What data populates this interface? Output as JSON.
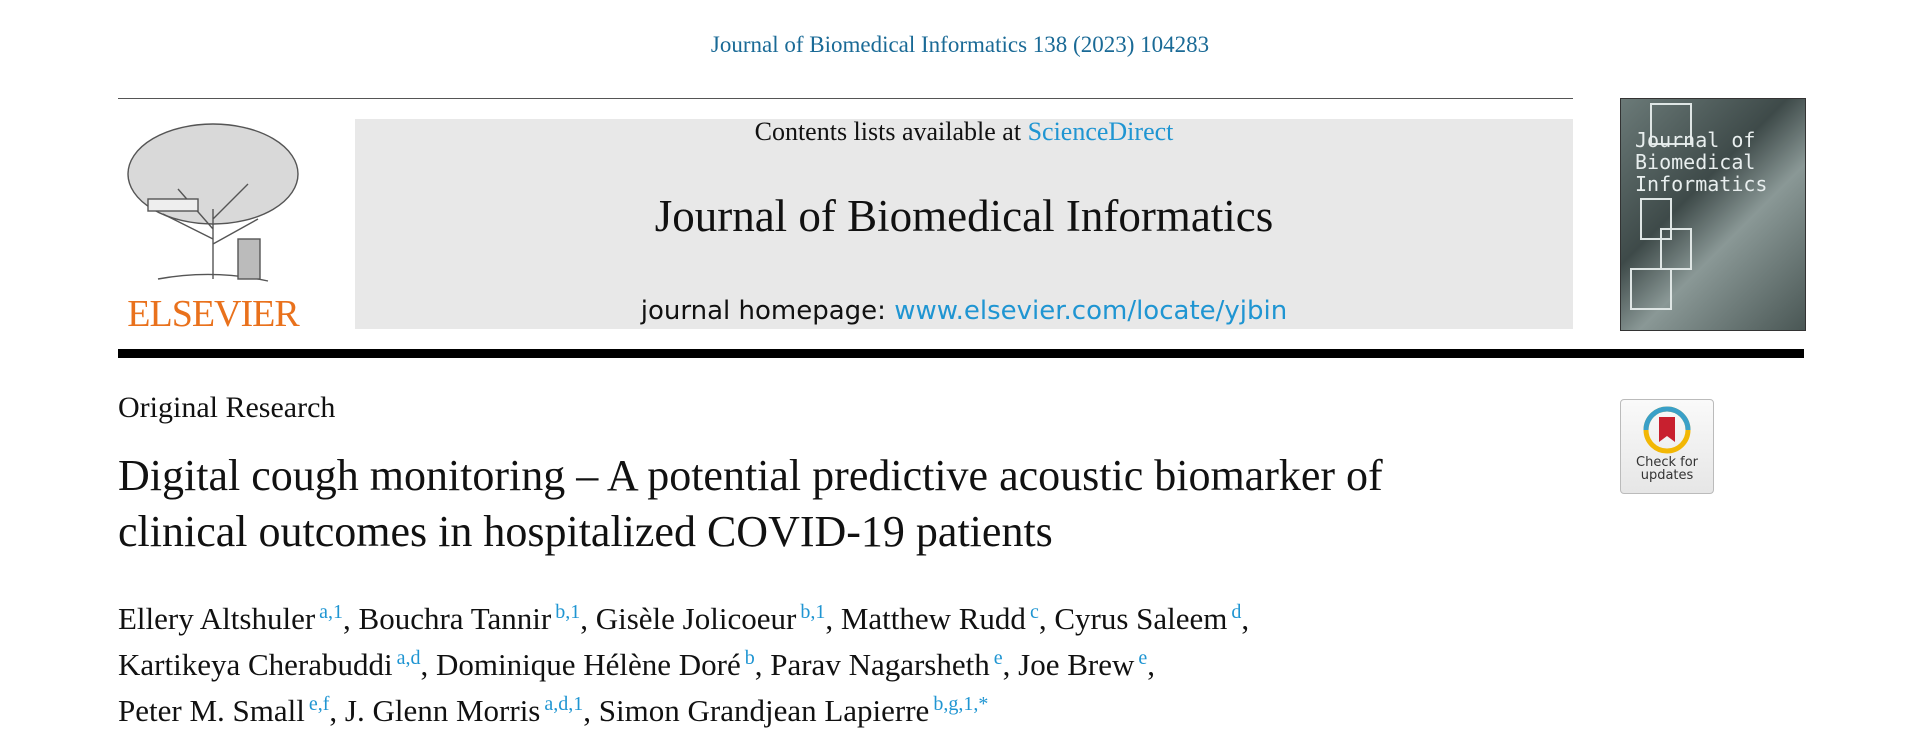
{
  "header": {
    "journal_ref": "Journal of Biomedical Informatics 138 (2023) 104283",
    "contents_prefix": "Contents lists available at",
    "contents_link": "ScienceDirect",
    "journal_title": "Journal of Biomedical Informatics",
    "homepage_prefix": "journal homepage:",
    "homepage_link": "www.elsevier.com/locate/yjbin",
    "publisher": "ELSEVIER",
    "cover_lines": [
      "Journal of",
      "Biomedical",
      "Informatics"
    ]
  },
  "article": {
    "type": "Original Research",
    "title_lines": [
      "Digital cough monitoring – A potential predictive acoustic biomarker of",
      "clinical outcomes in hospitalized COVID-19 patients"
    ],
    "check_updates": [
      "Check for",
      "updates"
    ],
    "author_lines": [
      [
        {
          "name": "Ellery Altshuler",
          "sup": "a,1",
          "sep": ","
        },
        {
          "name": "Bouchra Tannir",
          "sup": "b,1",
          "sep": ","
        },
        {
          "name": "Gisèle Jolicoeur",
          "sup": "b,1",
          "sep": ","
        },
        {
          "name": "Matthew Rudd",
          "sup": "c",
          "sep": ","
        },
        {
          "name": "Cyrus Saleem",
          "sup": "d",
          "sep": ","
        }
      ],
      [
        {
          "name": "Kartikeya Cherabuddi",
          "sup": "a,d",
          "sep": ","
        },
        {
          "name": "Dominique Hélène Doré",
          "sup": "b",
          "sep": ","
        },
        {
          "name": "Parav Nagarsheth",
          "sup": "e",
          "sep": ","
        },
        {
          "name": "Joe Brew",
          "sup": "e",
          "sep": ","
        }
      ],
      [
        {
          "name": "Peter M. Small",
          "sup": "e,f",
          "sep": ","
        },
        {
          "name": "J. Glenn Morris",
          "sup": "a,d,1",
          "sep": ","
        },
        {
          "name": "Simon Grandjean Lapierre",
          "sup": "b,g,1,*"
        }
      ]
    ]
  }
}
